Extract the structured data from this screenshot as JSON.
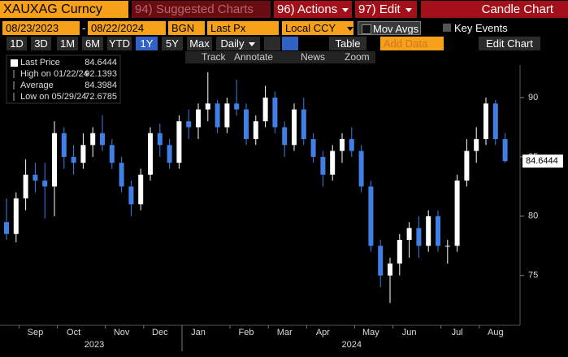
{
  "ui": {
    "security": "XAUXAG Curncy",
    "suggested": "94) Suggested Charts",
    "actions": "96) Actions",
    "edit": "97) Edit",
    "chart_title": "Candle Chart",
    "start_date": "08/23/2023",
    "dash": "-",
    "end_date": "08/22/2024",
    "source": "BGN",
    "field": "Last Px",
    "currency": "Local CCY",
    "mov_avgs": "Mov Avgs",
    "key_events": "Key Events",
    "periods": [
      "1D",
      "3D",
      "1M",
      "6M",
      "YTD",
      "1Y",
      "5Y",
      "Max"
    ],
    "frequency": "Daily",
    "table": "Table",
    "add_data": "Add Data",
    "edit_chart": "Edit Chart",
    "tools": [
      "Track",
      "Annotate",
      "News",
      "Zoom"
    ]
  },
  "chart_data": {
    "type": "candlestick",
    "categories": [
      null,
      null,
      null,
      "Sep",
      null,
      null,
      null,
      "Oct",
      null,
      null,
      null,
      null,
      "Nov",
      null,
      null,
      null,
      "Dec",
      null,
      null,
      null,
      "Jan",
      null,
      null,
      null,
      null,
      "Feb",
      null,
      null,
      null,
      "Mar",
      null,
      null,
      null,
      "Apr",
      null,
      null,
      null,
      null,
      "May",
      null,
      null,
      null,
      "Jun",
      null,
      null,
      null,
      null,
      "Jul",
      null,
      null,
      null,
      "Aug",
      null
    ],
    "series": [
      {
        "name": "Last Price",
        "open": [
          79.5,
          78.5,
          81.5,
          83.5,
          83,
          82.5,
          87,
          85,
          84.5,
          86,
          87,
          86,
          84.5,
          82.5,
          81,
          83.5,
          87,
          86,
          84.5,
          88,
          87.5,
          89,
          89.5,
          87.5,
          89.5,
          89,
          86.5,
          88,
          90,
          87.5,
          86,
          89,
          86.5,
          85,
          83.5,
          85.5,
          86.5,
          85.5,
          82.5,
          77.5,
          75,
          76,
          78,
          79,
          77.5,
          80,
          77.5,
          77.5,
          83,
          85.5,
          86.5,
          89.5,
          86.5
        ],
        "high": [
          81.5,
          82,
          84.8,
          84.5,
          84.5,
          88,
          87.5,
          86,
          87,
          87.5,
          88.5,
          86.5,
          85,
          83,
          84,
          87.5,
          87.8,
          86.5,
          88.5,
          89,
          89.5,
          92.1393,
          89.8,
          90,
          91.5,
          89.5,
          88.5,
          91,
          90.5,
          88,
          89.5,
          90,
          87,
          85.5,
          86,
          87,
          87.5,
          86,
          83,
          78,
          76.5,
          78.5,
          79.5,
          80,
          80.5,
          80.5,
          78,
          83.5,
          86.5,
          87.5,
          90,
          89.8,
          87
        ],
        "low": [
          78,
          77.8,
          80.5,
          82,
          79.8,
          80,
          84,
          83.5,
          84,
          85,
          85.5,
          84,
          82,
          80,
          80.5,
          83,
          85,
          84,
          84,
          86.5,
          86.5,
          88,
          87,
          87,
          88.5,
          86,
          86,
          87.5,
          87,
          85,
          85.5,
          86,
          84.5,
          82.5,
          83,
          84.5,
          85,
          82,
          77,
          74,
          72.6785,
          75,
          76.5,
          76.5,
          77,
          77,
          76,
          77,
          82.5,
          84.5,
          86,
          86,
          84.5
        ],
        "close": [
          78.5,
          81.5,
          83.5,
          83,
          82.5,
          87,
          85,
          84.5,
          86,
          87,
          86,
          84.5,
          82.5,
          81,
          83.5,
          87,
          86,
          84.5,
          88,
          87.5,
          89,
          89.5,
          87.5,
          89.5,
          89,
          86.5,
          88,
          90,
          87.5,
          86,
          89,
          86.5,
          85,
          83.5,
          85.5,
          86.5,
          85.5,
          82.5,
          77.5,
          75,
          76,
          78,
          79,
          77.5,
          80,
          77.5,
          77.5,
          83,
          85.5,
          86.5,
          89.5,
          86.5,
          84.6444
        ]
      }
    ],
    "up_color": "#ffffff",
    "down_color": "#3f7fe6",
    "ylim": [
      70.8,
      92.4
    ],
    "yticks": [
      75,
      80,
      85,
      90
    ],
    "years": [
      "2023",
      "2024"
    ],
    "legend": [
      {
        "label": "Last Price",
        "value": 84.6444
      },
      {
        "label": "High on 01/22/24",
        "value": 92.1393
      },
      {
        "label": "Average",
        "value": 84.3984
      },
      {
        "label": "Low on 05/29/24",
        "value": 72.6785
      }
    ]
  }
}
